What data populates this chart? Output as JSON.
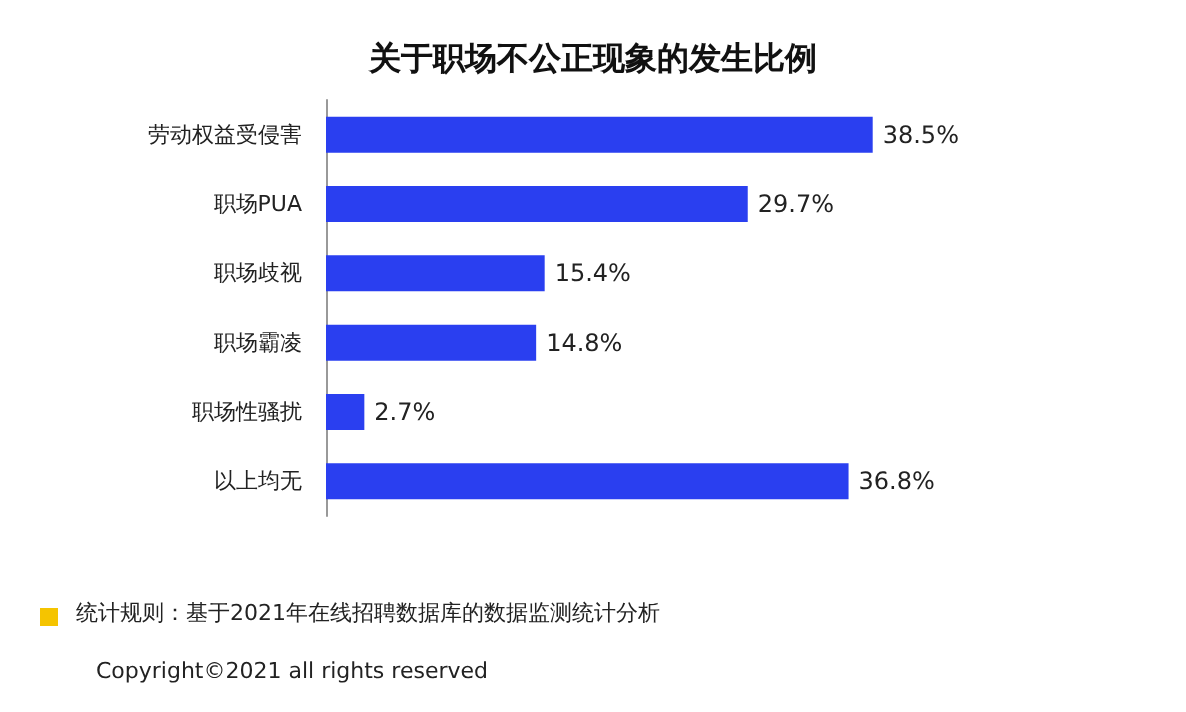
{
  "chart_data": {
    "type": "bar",
    "orientation": "horizontal",
    "title": "关于职场不公正现象的发生比例",
    "categories": [
      "劳动权益受侵害",
      "职场PUA",
      "职场歧视",
      "职场霸凌",
      "职场性骚扰",
      "以上均无"
    ],
    "values": [
      38.5,
      29.7,
      15.4,
      14.8,
      2.7,
      36.8
    ],
    "value_labels": [
      "38.5%",
      "29.7%",
      "15.4%",
      "14.8%",
      "2.7%",
      "36.8%"
    ],
    "color": "#2a3ff0",
    "tick_labels": "y",
    "annotations": [
      "统计规则：基于2021年在线招聘数据库的数据监测统计分析",
      "Copyright©2021 all rights reserved"
    ]
  }
}
